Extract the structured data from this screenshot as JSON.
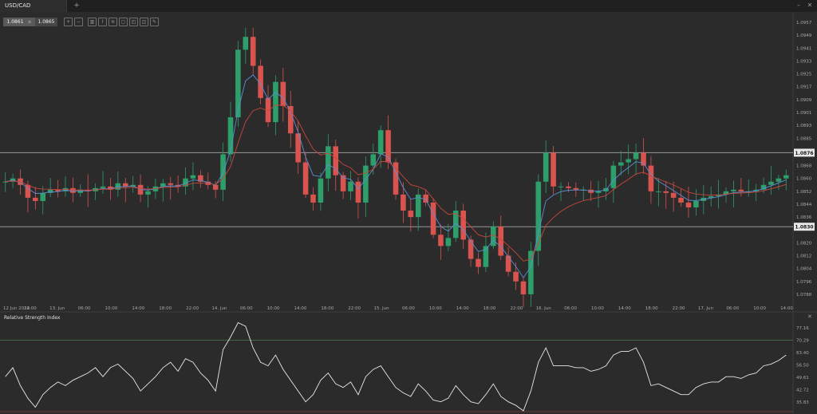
{
  "tab": {
    "symbol": "USD/CAD",
    "add_label": "+"
  },
  "window_controls": {
    "minimize": "–",
    "close": "✕"
  },
  "quote": {
    "bid": "1.0861",
    "separator": "≡",
    "ask": "1.0865"
  },
  "toolbar": {
    "icons": [
      "zoom-in-icon",
      "zoom-out-icon",
      "candles-icon",
      "chart-style-icon",
      "indicators-icon",
      "draw-icon",
      "screenshot-icon",
      "template-icon",
      "pencil-icon"
    ]
  },
  "price_axis": {
    "ticks": [
      "1.0957",
      "1.0949",
      "1.0941",
      "1.0933",
      "1.0925",
      "1.0917",
      "1.0909",
      "1.0901",
      "1.0893",
      "1.0885",
      "1.0868",
      "1.0860",
      "1.0852",
      "1.0844",
      "1.0836",
      "1.0820",
      "1.0812",
      "1.0804",
      "1.0796",
      "1.0788"
    ],
    "tick_values": [
      1.0957,
      1.0949,
      1.0941,
      1.0933,
      1.0925,
      1.0917,
      1.0909,
      1.0901,
      1.0893,
      1.0885,
      1.0868,
      1.086,
      1.0852,
      1.0844,
      1.0836,
      1.082,
      1.0812,
      1.0804,
      1.0796,
      1.0788
    ],
    "ylim": [
      1.0784,
      1.096
    ],
    "level_high": {
      "value": 1.0876,
      "label": "1.0876"
    },
    "level_low": {
      "value": 1.083,
      "label": "1.0830"
    }
  },
  "time_axis": {
    "labels": [
      "12 Jun 2014",
      "22:00",
      "13. Jun",
      "06:00",
      "10:00",
      "14:00",
      "18:00",
      "22:00",
      "14. Jun",
      "06:00",
      "10:00",
      "14:00",
      "18:00",
      "22:00",
      "15. Jun",
      "06:00",
      "10:00",
      "14:00",
      "18:00",
      "22:00",
      "16. Jun",
      "06:00",
      "10:00",
      "14:00",
      "18:00",
      "22:00",
      "17. Jun",
      "06:00",
      "10:00",
      "14:00"
    ]
  },
  "rsi": {
    "title": "Relative Strength Index",
    "ticks": [
      "77.16",
      "70.29",
      "63.40",
      "56.50",
      "49.61",
      "42.72",
      "35.83"
    ],
    "tick_values": [
      77.16,
      70.29,
      63.4,
      56.5,
      49.61,
      42.72,
      35.83
    ],
    "ylim": [
      31,
      82
    ],
    "upper_level": 70.29,
    "lower_level": 30
  },
  "colors": {
    "up": "#2e9e6a",
    "down": "#d9534f",
    "ma_fast": "#5b8fd6",
    "ma_slow": "#c9463d",
    "rsi_line": "#e8e8e8",
    "level_line": "#9a9a9a"
  },
  "chart_data": {
    "type": "candlestick",
    "symbol": "USD/CAD",
    "close_series": [
      1.0858,
      1.086,
      1.0856,
      1.0848,
      1.0846,
      1.0851,
      1.0853,
      1.0852,
      1.0854,
      1.0851,
      1.0853,
      1.0852,
      1.0854,
      1.0855,
      1.0853,
      1.0857,
      1.0855,
      1.0856,
      1.085,
      1.0852,
      1.0855,
      1.0857,
      1.0856,
      1.0855,
      1.086,
      1.0862,
      1.0858,
      1.0856,
      1.0853,
      1.0875,
      1.0898,
      1.094,
      1.0948,
      1.093,
      1.091,
      1.0895,
      1.092,
      1.0905,
      1.0888,
      1.087,
      1.085,
      1.0845,
      1.086,
      1.088,
      1.0862,
      1.0852,
      1.0858,
      1.0845,
      1.0868,
      1.0875,
      1.089,
      1.087,
      1.085,
      1.084,
      1.0836,
      1.085,
      1.0845,
      1.0825,
      1.0818,
      1.0823,
      1.084,
      1.0822,
      1.081,
      1.0805,
      1.0818,
      1.083,
      1.0812,
      1.0802,
      1.0796,
      1.0788,
      1.0815,
      1.0858,
      1.0876,
      1.0855,
      1.0855,
      1.0854,
      1.0853,
      1.0853,
      1.0851,
      1.0852,
      1.0854,
      1.0868,
      1.087,
      1.0872,
      1.0876,
      1.0868,
      1.0852,
      1.0852,
      1.0851,
      1.0848,
      1.0845,
      1.0842,
      1.0846,
      1.0848,
      1.0849,
      1.085,
      1.0852,
      1.0853,
      1.0852,
      1.0852,
      1.0853,
      1.0856,
      1.0858,
      1.086,
      1.0862
    ],
    "rsi_series": [
      50,
      55,
      45,
      38,
      33,
      40,
      44,
      47,
      45,
      48,
      50,
      52,
      55,
      50,
      55,
      57,
      53,
      49,
      42,
      46,
      50,
      55,
      58,
      53,
      60,
      58,
      52,
      48,
      42,
      65,
      72,
      80,
      78,
      66,
      58,
      56,
      62,
      54,
      48,
      42,
      36,
      40,
      48,
      52,
      46,
      44,
      47,
      40,
      50,
      54,
      56,
      50,
      44,
      41,
      39,
      46,
      42,
      37,
      36,
      38,
      45,
      40,
      36,
      35,
      40,
      46,
      39,
      36,
      34,
      30,
      42,
      58,
      66,
      56,
      56,
      56,
      55,
      55,
      53,
      54,
      56,
      62,
      64,
      64,
      66,
      58,
      45,
      46,
      44,
      42,
      40,
      40,
      44,
      46,
      47,
      47,
      50,
      50,
      49,
      51,
      52,
      56,
      57,
      59,
      62
    ],
    "ylim": [
      1.0784,
      1.096
    ],
    "horizontal_levels": [
      1.0876,
      1.083
    ],
    "overlays": [
      "moving_average_fast",
      "moving_average_slow"
    ],
    "indicator": {
      "name": "Relative Strength Index",
      "levels": [
        70.29,
        30
      ]
    }
  }
}
